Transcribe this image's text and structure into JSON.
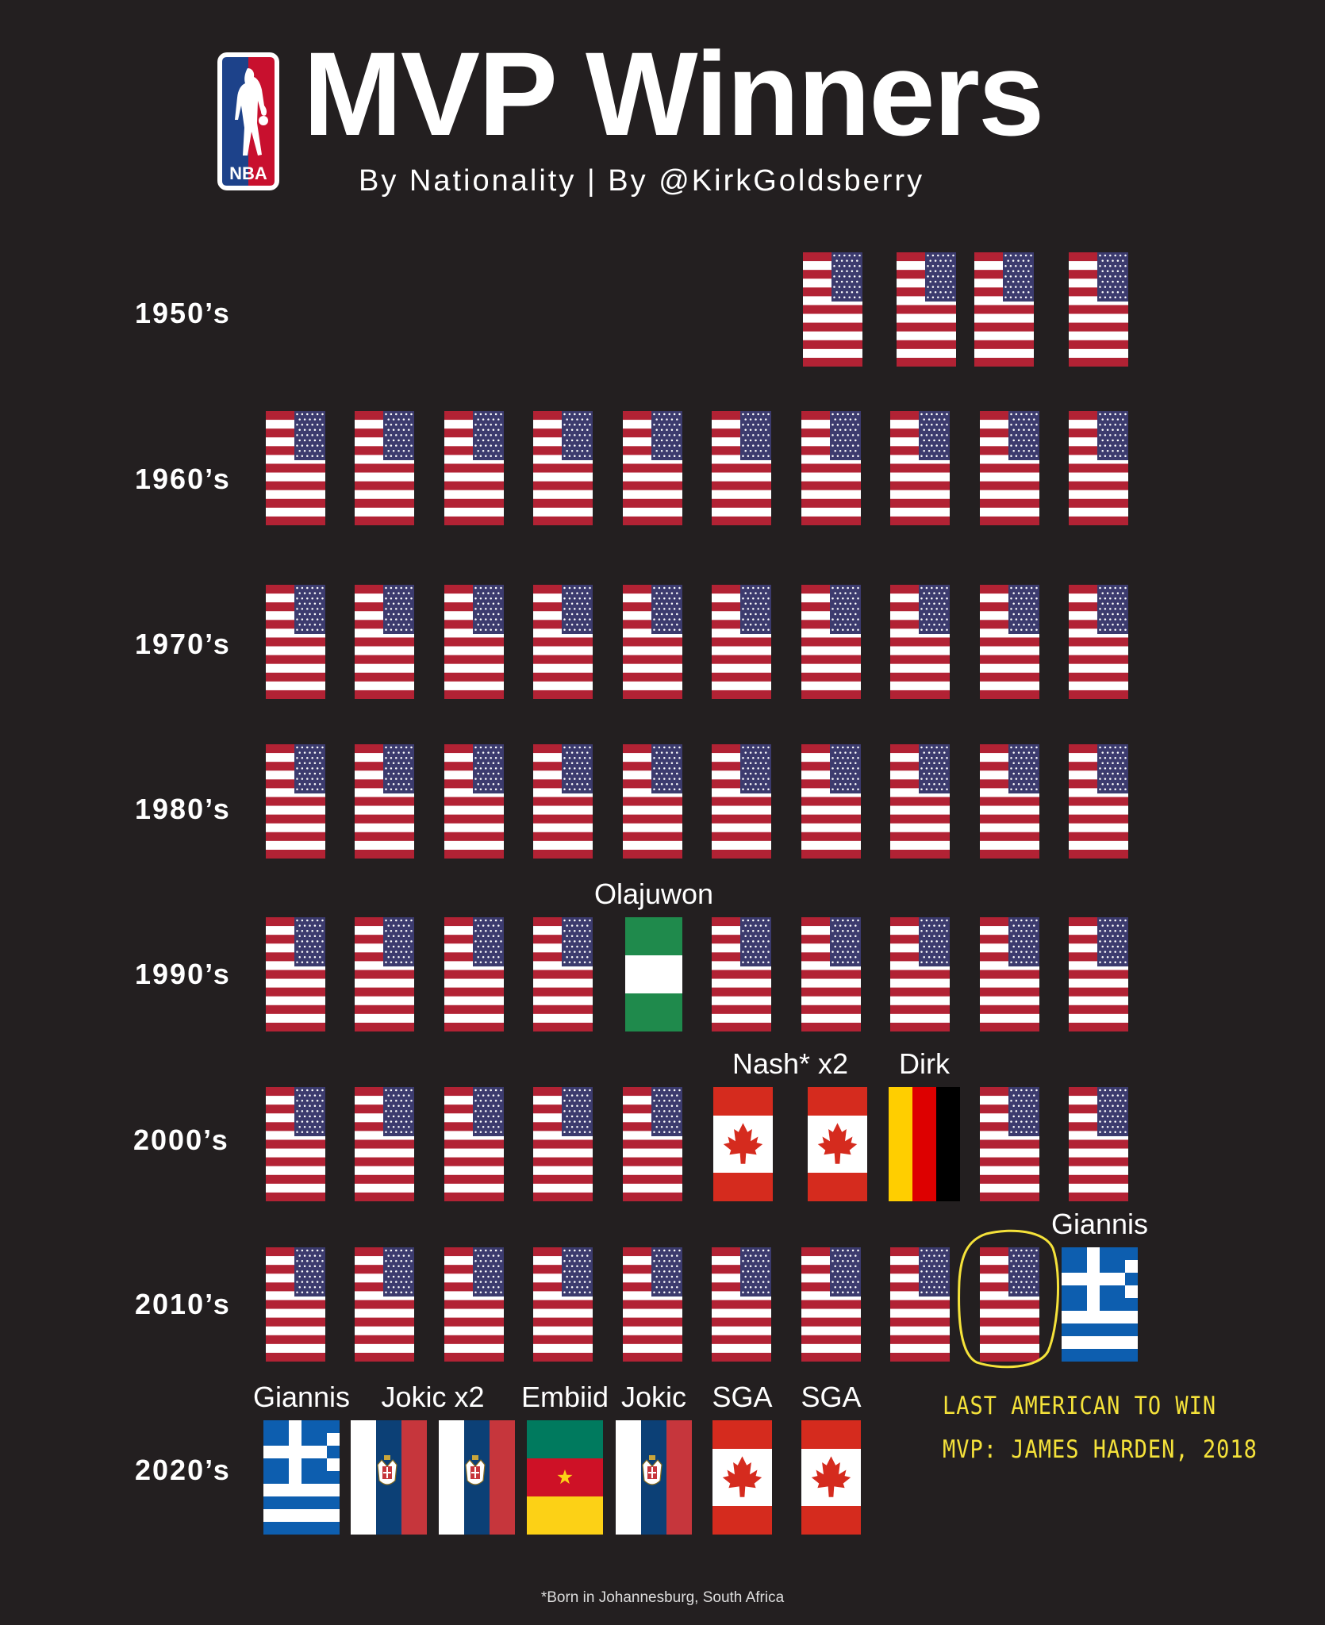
{
  "header": {
    "logo_text": "NBA",
    "title": "MVP Winners",
    "subtitle": "By Nationality | By @KirkGoldsberry"
  },
  "colors": {
    "background": "#231f20",
    "usa_red": "#b22234",
    "usa_blue": "#3c3b6e",
    "nigeria_green": "#1f8a4c",
    "canada_red": "#d52b1e",
    "germany_gold": "#ffce00",
    "germany_red": "#dd0000",
    "greece_blue": "#0d5eaf",
    "serbia_red": "#c6363c",
    "serbia_blue": "#0c4076",
    "cameroon_green": "#007a5e",
    "cameroon_red": "#ce1126",
    "cameroon_yellow": "#fcd116",
    "annotation_yellow": "#f5e23a"
  },
  "decades": [
    {
      "label": "1950’s",
      "flags": [
        "usa",
        "usa",
        "usa",
        "usa"
      ],
      "labels": []
    },
    {
      "label": "1960’s",
      "flags": [
        "usa",
        "usa",
        "usa",
        "usa",
        "usa",
        "usa",
        "usa",
        "usa",
        "usa",
        "usa"
      ],
      "labels": []
    },
    {
      "label": "1970’s",
      "flags": [
        "usa",
        "usa",
        "usa",
        "usa",
        "usa",
        "usa",
        "usa",
        "usa",
        "usa",
        "usa"
      ],
      "labels": []
    },
    {
      "label": "1980’s",
      "flags": [
        "usa",
        "usa",
        "usa",
        "usa",
        "usa",
        "usa",
        "usa",
        "usa",
        "usa",
        "usa"
      ],
      "labels": []
    },
    {
      "label": "1990’s",
      "flags": [
        "usa",
        "usa",
        "usa",
        "usa",
        "nigeria",
        "usa",
        "usa",
        "usa",
        "usa",
        "usa"
      ],
      "labels": [
        {
          "text": "Olajuwon",
          "flag_index": 4
        }
      ]
    },
    {
      "label": "2000’s",
      "flags": [
        "usa",
        "usa",
        "usa",
        "usa",
        "usa",
        "canada",
        "canada",
        "germany",
        "usa",
        "usa"
      ],
      "labels": [
        {
          "text": "Nash* x2",
          "flag_index": 5.5
        },
        {
          "text": "Dirk",
          "flag_index": 7
        }
      ]
    },
    {
      "label": "2010’s",
      "flags": [
        "usa",
        "usa",
        "usa",
        "usa",
        "usa",
        "usa",
        "usa",
        "usa",
        "usa",
        "greece"
      ],
      "labels": [
        {
          "text": "Giannis",
          "flag_index": 9
        }
      ]
    },
    {
      "label": "2020’s",
      "flags": [
        "greece",
        "serbia",
        "serbia",
        "cameroon",
        "serbia",
        "canada",
        "canada"
      ],
      "labels": [
        {
          "text": "Giannis",
          "flag_index": 0
        },
        {
          "text": "Jokic x2",
          "flag_index": 1.5
        },
        {
          "text": "Embiid",
          "flag_index": 3
        },
        {
          "text": "Jokic",
          "flag_index": 4
        },
        {
          "text": "SGA",
          "flag_index": 5
        },
        {
          "text": "SGA",
          "flag_index": 6
        }
      ]
    }
  ],
  "annotation": {
    "lines": [
      "LAST AMERICAN TO WIN",
      "MVP: JAMES HARDEN, 2018"
    ]
  },
  "footnote": "*Born in Johannesburg, South Africa"
}
